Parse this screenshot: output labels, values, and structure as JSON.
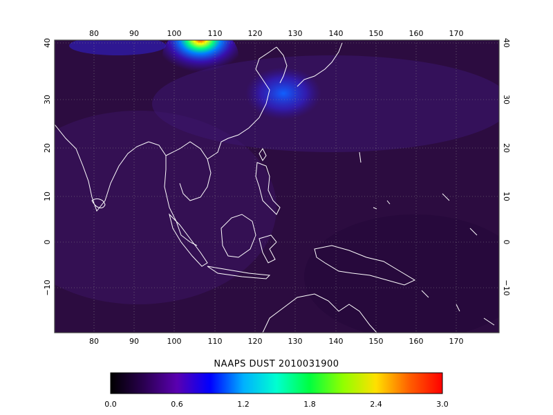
{
  "title": "NAAPS DUST 2010031900",
  "map": {
    "lon_ticks": [
      "80",
      "90",
      "100",
      "110",
      "120",
      "130",
      "140",
      "150",
      "160",
      "170"
    ],
    "lat_ticks": [
      "40",
      "30",
      "20",
      "10",
      "0",
      "−10"
    ],
    "background_color": "#2a0a3a",
    "coast_color": "#ffffff",
    "grid": true
  },
  "colorbar": {
    "labels": [
      "0.0",
      "0.6",
      "1.2",
      "1.8",
      "2.4",
      "3.0"
    ],
    "colors": [
      "#000000",
      "#3a0060",
      "#6a00c8",
      "#0000ff",
      "#00c8ff",
      "#00ff80",
      "#80ff00",
      "#ffff00",
      "#ff8000",
      "#ff0000"
    ]
  },
  "plume": {
    "peak_color": "#ff0000",
    "peak_lon": 105,
    "peak_lat": 40
  }
}
